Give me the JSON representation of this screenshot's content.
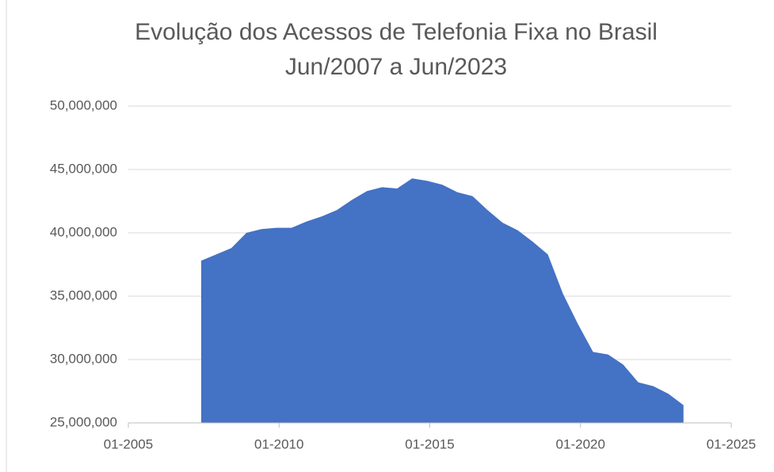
{
  "chart_data": {
    "type": "area",
    "title": "Evolução dos Acessos de Telefonia Fixa no Brasil",
    "subtitle": "Jun/2007 a Jun/2023",
    "color": "#4472c4",
    "grid": true,
    "x": [
      "06-2007",
      "12-2007",
      "06-2008",
      "12-2008",
      "06-2009",
      "12-2009",
      "06-2010",
      "12-2010",
      "06-2011",
      "12-2011",
      "06-2012",
      "12-2012",
      "06-2013",
      "12-2013",
      "06-2014",
      "12-2014",
      "06-2015",
      "12-2015",
      "06-2016",
      "12-2016",
      "06-2017",
      "12-2017",
      "06-2018",
      "12-2018",
      "06-2019",
      "12-2019",
      "06-2020",
      "12-2020",
      "06-2021",
      "12-2021",
      "06-2022",
      "12-2022",
      "06-2023"
    ],
    "values": [
      37800000,
      38300000,
      38800000,
      40000000,
      40300000,
      40400000,
      40400000,
      40900000,
      41300000,
      41800000,
      42600000,
      43300000,
      43600000,
      43500000,
      44300000,
      44100000,
      43800000,
      43200000,
      42900000,
      41800000,
      40800000,
      40200000,
      39300000,
      38300000,
      35200000,
      32800000,
      30600000,
      30400000,
      29600000,
      28200000,
      27900000,
      27300000,
      26400000
    ],
    "xlim": [
      "01-2005",
      "01-2025"
    ],
    "xticks": [
      "01-2005",
      "01-2010",
      "01-2015",
      "01-2020",
      "01-2025"
    ],
    "ylim": [
      25000000,
      50000000
    ],
    "yticks": [
      {
        "value": 25000000,
        "label": "25,000,000"
      },
      {
        "value": 30000000,
        "label": "30,000,000"
      },
      {
        "value": 35000000,
        "label": "35,000,000"
      },
      {
        "value": 40000000,
        "label": "40,000,000"
      },
      {
        "value": 45000000,
        "label": "45,000,000"
      },
      {
        "value": 50000000,
        "label": "50,000,000"
      }
    ]
  }
}
